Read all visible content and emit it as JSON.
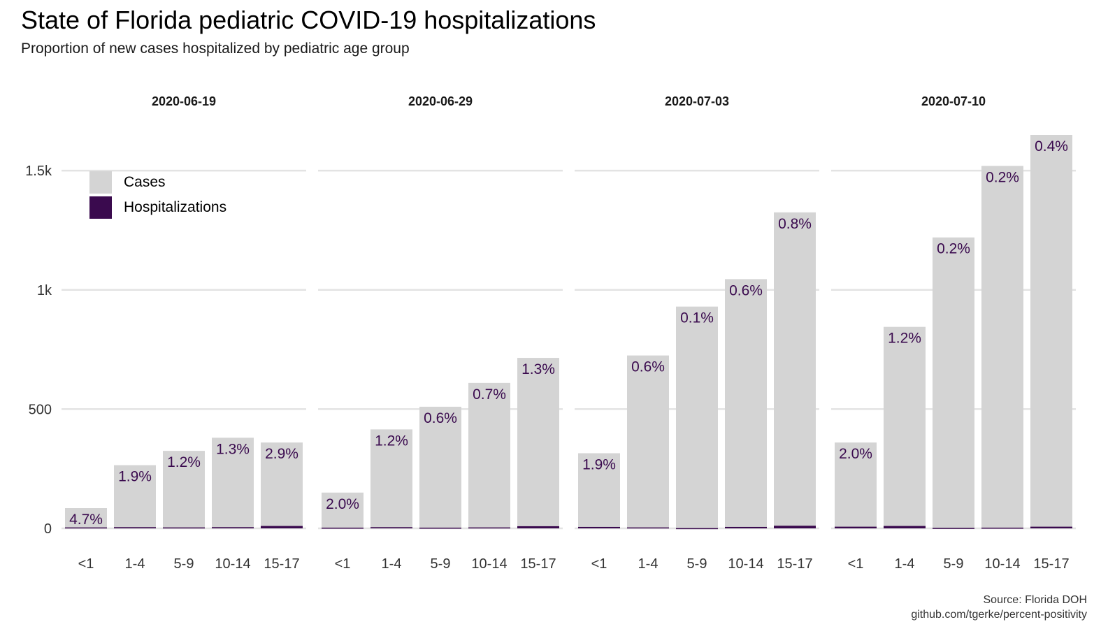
{
  "title": "State of Florida pediatric COVID-19 hospitalizations",
  "subtitle": "Proportion of new cases hospitalized by pediatric age group",
  "caption": {
    "line1": "Source: Florida DOH",
    "line2": "github.com/tgerke/percent-positivity"
  },
  "legend": {
    "items": [
      {
        "label": "Cases",
        "color": "#d4d4d4"
      },
      {
        "label": "Hospitalizations",
        "color": "#3a0a4e"
      }
    ]
  },
  "colors": {
    "cases": "#d4d4d4",
    "hospitalizations": "#3a0a4e",
    "label_text": "#3a0a4e",
    "grid": "#e3e3e3",
    "axis_text": "#333333"
  },
  "chart_data": {
    "type": "bar",
    "categories": [
      "<1",
      "1-4",
      "5-9",
      "10-14",
      "15-17"
    ],
    "y_ticks": [
      {
        "value": 0,
        "label": "0"
      },
      {
        "value": 500,
        "label": "500"
      },
      {
        "value": 1000,
        "label": "1k"
      },
      {
        "value": 1500,
        "label": "1.5k"
      }
    ],
    "ylim": [
      0,
      1650
    ],
    "grid": true,
    "legend_position": "top-left",
    "panels": [
      {
        "date": "2020-06-19",
        "cases": [
          85,
          265,
          325,
          380,
          360
        ],
        "hospitalizations": [
          4,
          5,
          4,
          5,
          10
        ],
        "labels": [
          "4.7%",
          "1.9%",
          "1.2%",
          "1.3%",
          "2.9%"
        ]
      },
      {
        "date": "2020-06-29",
        "cases": [
          150,
          415,
          510,
          610,
          715
        ],
        "hospitalizations": [
          3,
          5,
          3,
          4,
          9
        ],
        "labels": [
          "2.0%",
          "1.2%",
          "0.6%",
          "0.7%",
          "1.3%"
        ]
      },
      {
        "date": "2020-07-03",
        "cases": [
          315,
          725,
          930,
          1045,
          1325
        ],
        "hospitalizations": [
          6,
          4,
          1,
          6,
          11
        ],
        "labels": [
          "1.9%",
          "0.6%",
          "0.1%",
          "0.6%",
          "0.8%"
        ]
      },
      {
        "date": "2020-07-10",
        "cases": [
          360,
          845,
          1220,
          1520,
          1650
        ],
        "hospitalizations": [
          7,
          10,
          2,
          3,
          7
        ],
        "labels": [
          "2.0%",
          "1.2%",
          "0.2%",
          "0.2%",
          "0.4%"
        ]
      }
    ]
  }
}
